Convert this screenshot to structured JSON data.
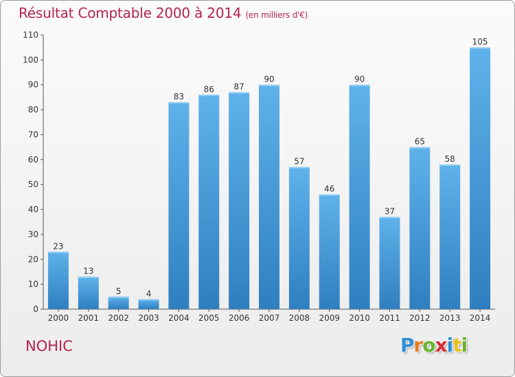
{
  "header": {
    "title": "Résultat Comptable 2000 à 2014",
    "subtitle": "(en milliers d'€)"
  },
  "commune": "NOHIC",
  "logo": {
    "letters": [
      "P",
      "r",
      "o",
      "x",
      "i",
      "t",
      "i"
    ],
    "colors": [
      "#2f8fd6",
      "#e87b1e",
      "#6ab42d",
      "#d62f3a",
      "#2f8fd6",
      "#e8c21e",
      "#6ab42d"
    ]
  },
  "chart_data": {
    "type": "bar",
    "title": "Résultat Comptable 2000 à 2014",
    "subtitle": "(en milliers d'€)",
    "xlabel": "",
    "ylabel": "",
    "categories": [
      "2000",
      "2001",
      "2002",
      "2003",
      "2004",
      "2005",
      "2006",
      "2007",
      "2008",
      "2009",
      "2010",
      "2011",
      "2012",
      "2013",
      "2014"
    ],
    "values": [
      23,
      13,
      5,
      4,
      83,
      86,
      87,
      90,
      57,
      46,
      90,
      37,
      65,
      58,
      105
    ],
    "ylim": [
      0,
      110
    ],
    "yticks": [
      0,
      10,
      20,
      30,
      40,
      50,
      60,
      70,
      80,
      90,
      100,
      110
    ],
    "grid": false,
    "bar_color": "#3e97d8"
  }
}
